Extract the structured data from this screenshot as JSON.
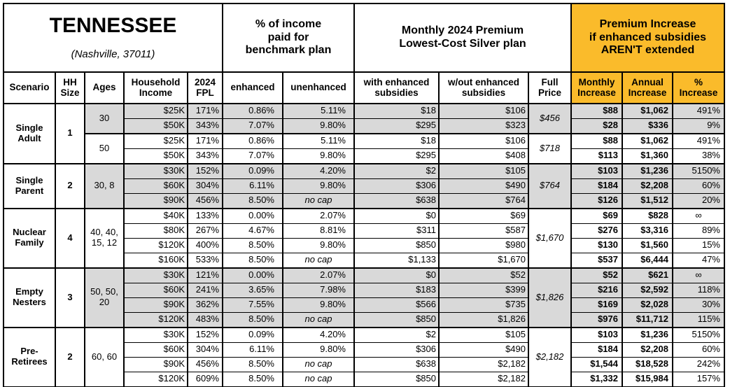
{
  "header": {
    "title_main": "TENNESSEE",
    "title_sub": "(Nashville, 37011)",
    "income_pct_group": "% of income\npaid for\nbenchmark plan",
    "premium_group": "Monthly 2024 Premium\nLowest-Cost Silver plan",
    "increase_group": "Premium Increase\nif enhanced subsidies\nAREN'T extended",
    "columns": {
      "scenario": "Scenario",
      "hh_size": "HH\nSize",
      "ages": "Ages",
      "income": "Household\nIncome",
      "fpl": "2024\nFPL",
      "enhanced": "enhanced",
      "unenhanced": "unenhanced",
      "with_sub": "with enhanced\nsubsidies",
      "wout_sub": "w/out enhanced\nsubsidies",
      "full_price": "Full\nPrice",
      "monthly": "Monthly\nIncrease",
      "annual": "Annual\nIncrease",
      "pct": "%\nIncrease"
    }
  },
  "colors": {
    "highlight": "#FABB2B",
    "row_shade": "#D9D9D9"
  },
  "groups": [
    {
      "scenario": "Single\nAdult",
      "hh_size": "1",
      "age_blocks": [
        {
          "ages": "30",
          "shaded": true,
          "full_price": "$456",
          "rows": [
            {
              "income": "$25K",
              "fpl": "171%",
              "enhanced": "0.86%",
              "unenhanced": "5.11%",
              "with_sub": "$18",
              "wout_sub": "$106",
              "monthly": "$88",
              "annual": "$1,062",
              "pct": "491%"
            },
            {
              "income": "$50K",
              "fpl": "343%",
              "enhanced": "7.07%",
              "unenhanced": "9.80%",
              "with_sub": "$295",
              "wout_sub": "$323",
              "monthly": "$28",
              "annual": "$336",
              "pct": "9%"
            }
          ]
        },
        {
          "ages": "50",
          "shaded": false,
          "full_price": "$718",
          "rows": [
            {
              "income": "$25K",
              "fpl": "171%",
              "enhanced": "0.86%",
              "unenhanced": "5.11%",
              "with_sub": "$18",
              "wout_sub": "$106",
              "monthly": "$88",
              "annual": "$1,062",
              "pct": "491%"
            },
            {
              "income": "$50K",
              "fpl": "343%",
              "enhanced": "7.07%",
              "unenhanced": "9.80%",
              "with_sub": "$295",
              "wout_sub": "$408",
              "monthly": "$113",
              "annual": "$1,360",
              "pct": "38%"
            }
          ]
        }
      ]
    },
    {
      "scenario": "Single\nParent",
      "hh_size": "2",
      "age_blocks": [
        {
          "ages": "30, 8",
          "shaded": true,
          "full_price": "$764",
          "rows": [
            {
              "income": "$30K",
              "fpl": "152%",
              "enhanced": "0.09%",
              "unenhanced": "4.20%",
              "with_sub": "$2",
              "wout_sub": "$105",
              "monthly": "$103",
              "annual": "$1,236",
              "pct": "5150%"
            },
            {
              "income": "$60K",
              "fpl": "304%",
              "enhanced": "6.11%",
              "unenhanced": "9.80%",
              "with_sub": "$306",
              "wout_sub": "$490",
              "monthly": "$184",
              "annual": "$2,208",
              "pct": "60%"
            },
            {
              "income": "$90K",
              "fpl": "456%",
              "enhanced": "8.50%",
              "unenhanced": "no cap",
              "with_sub": "$638",
              "wout_sub": "$764",
              "monthly": "$126",
              "annual": "$1,512",
              "pct": "20%"
            }
          ]
        }
      ]
    },
    {
      "scenario": "Nuclear\nFamily",
      "hh_size": "4",
      "age_blocks": [
        {
          "ages": "40, 40,\n15, 12",
          "shaded": false,
          "full_price": "$1,670",
          "rows": [
            {
              "income": "$40K",
              "fpl": "133%",
              "enhanced": "0.00%",
              "unenhanced": "2.07%",
              "with_sub": "$0",
              "wout_sub": "$69",
              "monthly": "$69",
              "annual": "$828",
              "pct": "∞"
            },
            {
              "income": "$80K",
              "fpl": "267%",
              "enhanced": "4.67%",
              "unenhanced": "8.81%",
              "with_sub": "$311",
              "wout_sub": "$587",
              "monthly": "$276",
              "annual": "$3,316",
              "pct": "89%"
            },
            {
              "income": "$120K",
              "fpl": "400%",
              "enhanced": "8.50%",
              "unenhanced": "9.80%",
              "with_sub": "$850",
              "wout_sub": "$980",
              "monthly": "$130",
              "annual": "$1,560",
              "pct": "15%"
            },
            {
              "income": "$160K",
              "fpl": "533%",
              "enhanced": "8.50%",
              "unenhanced": "no cap",
              "with_sub": "$1,133",
              "wout_sub": "$1,670",
              "monthly": "$537",
              "annual": "$6,444",
              "pct": "47%"
            }
          ]
        }
      ]
    },
    {
      "scenario": "Empty\nNesters",
      "hh_size": "3",
      "age_blocks": [
        {
          "ages": "50, 50,\n20",
          "shaded": true,
          "full_price": "$1,826",
          "rows": [
            {
              "income": "$30K",
              "fpl": "121%",
              "enhanced": "0.00%",
              "unenhanced": "2.07%",
              "with_sub": "$0",
              "wout_sub": "$52",
              "monthly": "$52",
              "annual": "$621",
              "pct": "∞"
            },
            {
              "income": "$60K",
              "fpl": "241%",
              "enhanced": "3.65%",
              "unenhanced": "7.98%",
              "with_sub": "$183",
              "wout_sub": "$399",
              "monthly": "$216",
              "annual": "$2,592",
              "pct": "118%"
            },
            {
              "income": "$90K",
              "fpl": "362%",
              "enhanced": "7.55%",
              "unenhanced": "9.80%",
              "with_sub": "$566",
              "wout_sub": "$735",
              "monthly": "$169",
              "annual": "$2,028",
              "pct": "30%"
            },
            {
              "income": "$120K",
              "fpl": "483%",
              "enhanced": "8.50%",
              "unenhanced": "no cap",
              "with_sub": "$850",
              "wout_sub": "$1,826",
              "monthly": "$976",
              "annual": "$11,712",
              "pct": "115%"
            }
          ]
        }
      ]
    },
    {
      "scenario": "Pre-\nRetirees",
      "hh_size": "2",
      "age_blocks": [
        {
          "ages": "60, 60",
          "shaded": false,
          "full_price": "$2,182",
          "rows": [
            {
              "income": "$30K",
              "fpl": "152%",
              "enhanced": "0.09%",
              "unenhanced": "4.20%",
              "with_sub": "$2",
              "wout_sub": "$105",
              "monthly": "$103",
              "annual": "$1,236",
              "pct": "5150%"
            },
            {
              "income": "$60K",
              "fpl": "304%",
              "enhanced": "6.11%",
              "unenhanced": "9.80%",
              "with_sub": "$306",
              "wout_sub": "$490",
              "monthly": "$184",
              "annual": "$2,208",
              "pct": "60%"
            },
            {
              "income": "$90K",
              "fpl": "456%",
              "enhanced": "8.50%",
              "unenhanced": "no cap",
              "with_sub": "$638",
              "wout_sub": "$2,182",
              "monthly": "$1,544",
              "annual": "$18,528",
              "pct": "242%"
            },
            {
              "income": "$120K",
              "fpl": "609%",
              "enhanced": "8.50%",
              "unenhanced": "no cap",
              "with_sub": "$850",
              "wout_sub": "$2,182",
              "monthly": "$1,332",
              "annual": "$15,984",
              "pct": "157%"
            }
          ]
        }
      ]
    }
  ]
}
